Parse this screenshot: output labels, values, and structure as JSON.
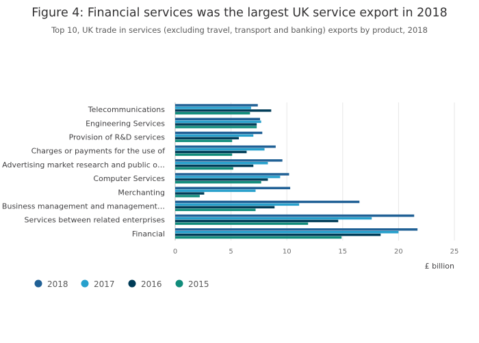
{
  "chart_data": {
    "type": "bar",
    "orientation": "horizontal",
    "title": "Figure 4: Financial services was the largest UK service export in 2018",
    "subtitle": "Top 10, UK trade in services (excluding travel, transport and banking) exports by product, 2018",
    "xlabel": "£ billion",
    "ylabel": "",
    "xlim": [
      0,
      25
    ],
    "xticks": [
      0,
      5,
      10,
      15,
      20,
      25
    ],
    "grid": true,
    "legend_position": "bottom-left",
    "categories": [
      "Telecommunications",
      "Engineering Services",
      "Provision of R&D services",
      "Charges or payments for the use of",
      "Advertising market research and public o…",
      "Computer Services",
      "Merchanting",
      "Business management and management…",
      "Services between related enterprises",
      "Financial"
    ],
    "series": [
      {
        "name": "2018",
        "color": "#206095",
        "values": [
          7.4,
          7.6,
          7.8,
          9.0,
          9.6,
          10.2,
          10.3,
          16.5,
          21.4,
          21.7
        ]
      },
      {
        "name": "2017",
        "color": "#27a0cc",
        "values": [
          6.8,
          7.7,
          7.0,
          8.0,
          8.3,
          9.4,
          7.2,
          11.1,
          17.6,
          20.0
        ]
      },
      {
        "name": "2016",
        "color": "#003c57",
        "values": [
          8.6,
          7.3,
          5.7,
          6.4,
          7.0,
          8.3,
          2.6,
          8.9,
          14.6,
          18.4
        ]
      },
      {
        "name": "2015",
        "color": "#118c7b",
        "values": [
          6.7,
          7.3,
          5.1,
          5.1,
          5.2,
          7.7,
          2.2,
          7.2,
          11.9,
          14.9
        ]
      }
    ]
  }
}
